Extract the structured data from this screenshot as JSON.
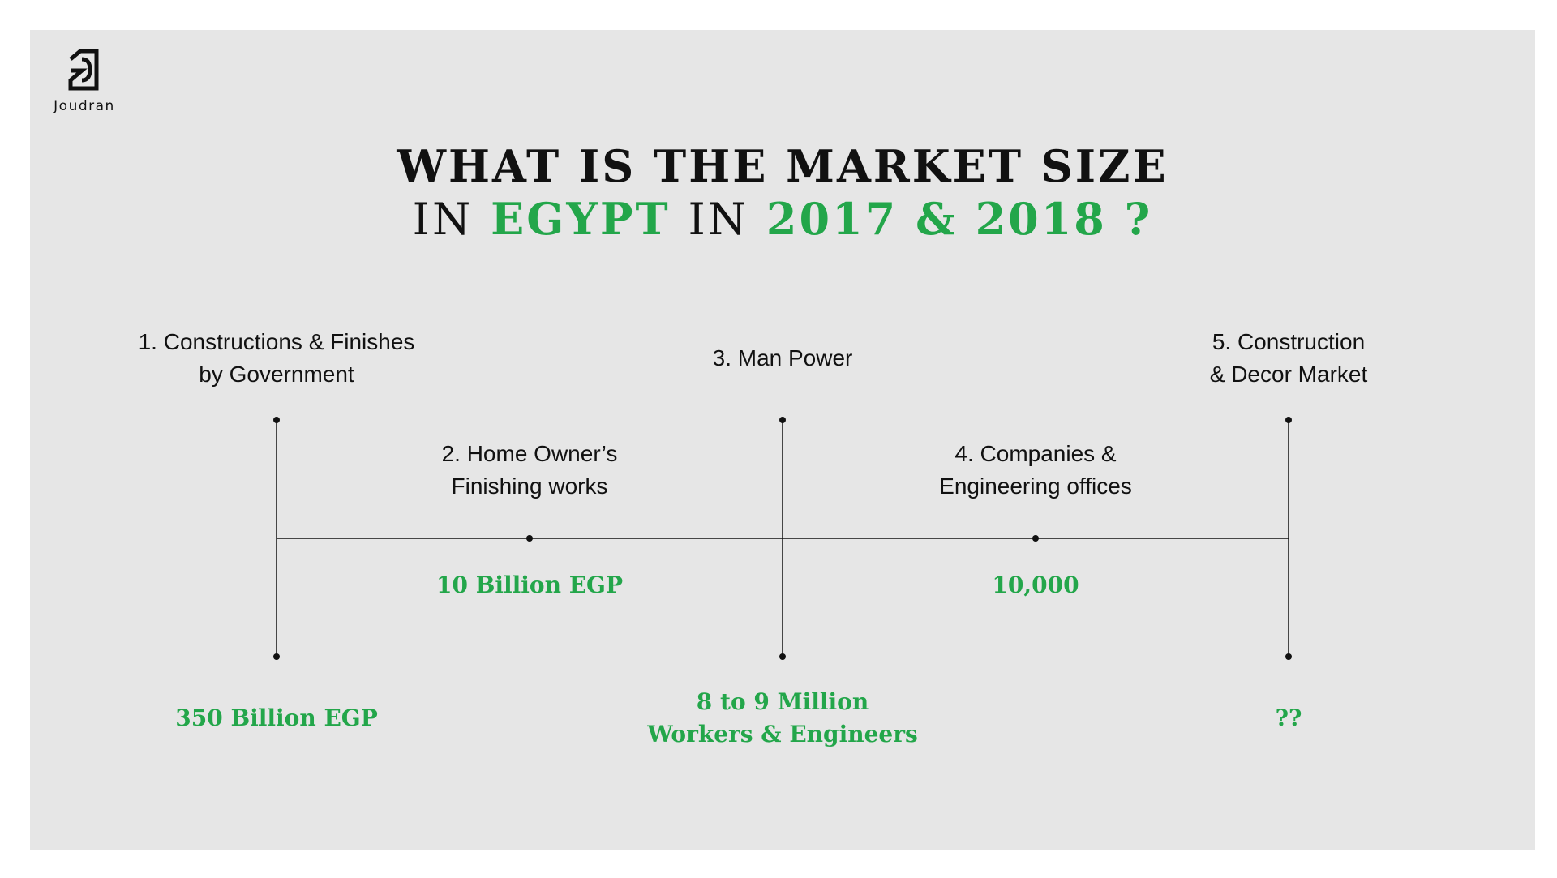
{
  "logo": {
    "text": "Joudran",
    "icon": "joudran-logo-mark"
  },
  "title": {
    "line1": "WHAT IS THE MARKET  SIZE",
    "line2_in_1": "IN",
    "line2_egypt": "EGYPT",
    "line2_in_2": "IN",
    "line2_years": "2017 & 2018 ?"
  },
  "items": [
    {
      "label_lines": [
        "1. Constructions & Finishes",
        "by Government"
      ],
      "value_lines": [
        "350 Billion EGP"
      ]
    },
    {
      "label_lines": [
        "2. Home Owner’s",
        "Finishing works"
      ],
      "value_lines": [
        "10 Billion EGP"
      ]
    },
    {
      "label_lines": [
        "3. Man Power"
      ],
      "value_lines": [
        "8 to 9 Million",
        "Workers & Engineers"
      ]
    },
    {
      "label_lines": [
        "4. Companies &",
        "Engineering offices"
      ],
      "value_lines": [
        "10,000"
      ]
    },
    {
      "label_lines": [
        "5. Construction",
        "& Decor Market"
      ],
      "value_lines": [
        "??"
      ]
    }
  ],
  "colors": {
    "accent_green": "#23a64a",
    "text": "#111111",
    "background": "#e6e6e6"
  }
}
